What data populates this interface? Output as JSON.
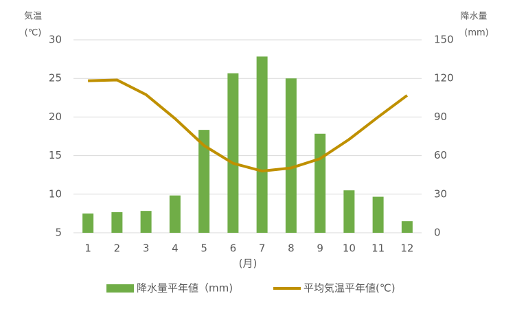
{
  "chart_data": {
    "type": "combo",
    "y_label": [
      "気温",
      "(℃)"
    ],
    "y2_label": [
      "降水量",
      "(mm)"
    ],
    "x_label": "(月)",
    "categories": [
      "1",
      "2",
      "3",
      "4",
      "5",
      "6",
      "7",
      "8",
      "9",
      "10",
      "11",
      "12"
    ],
    "series": [
      {
        "name": "降水量平年値（mm)",
        "type": "bar",
        "axis": "y2",
        "color": "#70ad47",
        "values": [
          15,
          16,
          17,
          29,
          80,
          124,
          137,
          120,
          77,
          33,
          28,
          9
        ]
      },
      {
        "name": "平均気温平年値(℃)",
        "type": "line",
        "axis": "y",
        "color": "#bf9000",
        "values": [
          24.7,
          24.8,
          22.9,
          19.8,
          16.3,
          14.0,
          13.0,
          13.4,
          14.6,
          17.1,
          20.0,
          22.8
        ]
      }
    ],
    "ylim": [
      5,
      30
    ],
    "yticks": [
      5,
      10,
      15,
      20,
      25,
      30
    ],
    "y2lim": [
      0,
      150
    ],
    "y2ticks": [
      0,
      30,
      60,
      90,
      120,
      150
    ],
    "grid": true,
    "legend": "bottom"
  }
}
